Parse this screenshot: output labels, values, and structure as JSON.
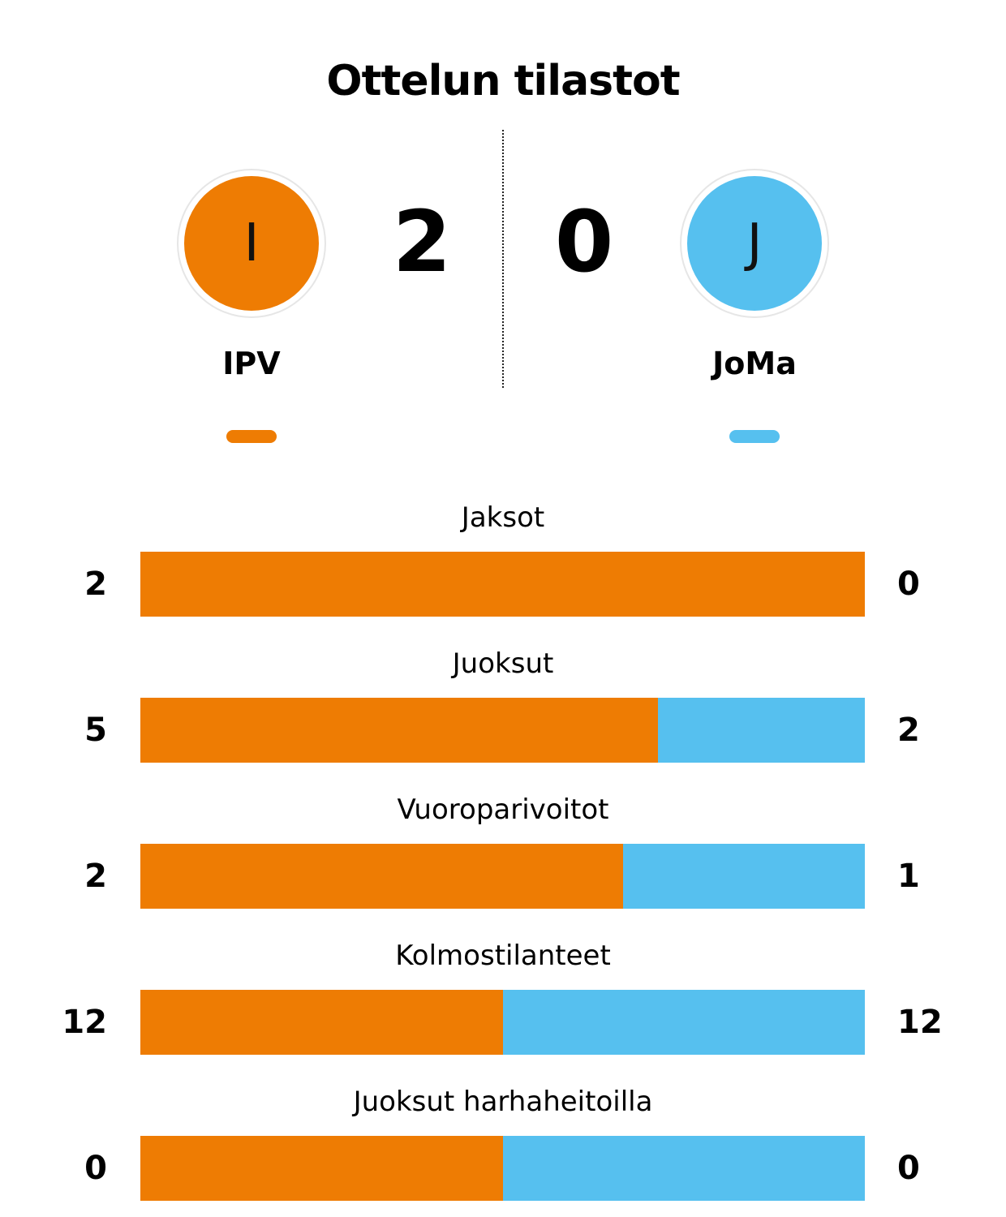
{
  "title": "Ottelun tilastot",
  "colors": {
    "home": "#ee7c03",
    "away": "#56c0ef"
  },
  "home": {
    "name": "IPV",
    "logo_letter": "I",
    "score": "2"
  },
  "away": {
    "name": "JoMa",
    "logo_letter": "J",
    "score": "0"
  },
  "chart_data": {
    "type": "bar",
    "orientation": "horizontal-stacked-share",
    "categories": [
      "Jaksot",
      "Juoksut",
      "Vuoroparivoitot",
      "Kolmostilanteet",
      "Juoksut harhaheitoilla"
    ],
    "series": [
      {
        "name": "IPV",
        "values": [
          2,
          5,
          2,
          12,
          0
        ]
      },
      {
        "name": "JoMa",
        "values": [
          0,
          2,
          1,
          12,
          0
        ]
      }
    ],
    "labels": {
      "home": [
        "2",
        "5",
        "2",
        "12",
        "0"
      ],
      "away": [
        "0",
        "2",
        "1",
        "12",
        "0"
      ]
    }
  }
}
